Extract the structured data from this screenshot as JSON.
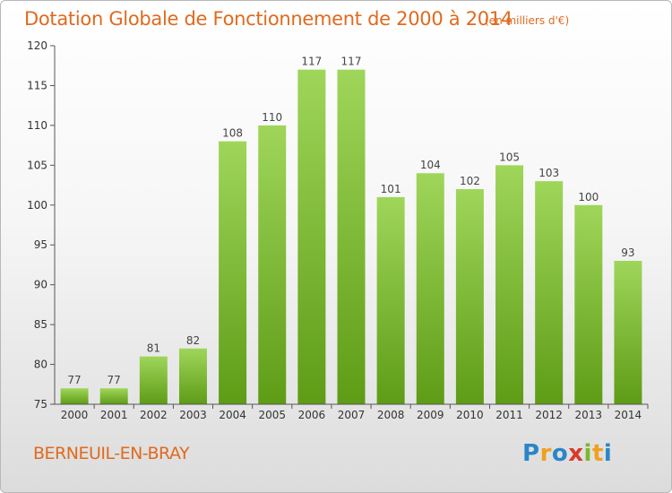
{
  "header": {
    "title": "Dotation Globale de Fonctionnement de 2000 à 2014",
    "unit": "(en milliers d'€)"
  },
  "footer": {
    "town": "BERNEUIL-EN-BRAY",
    "logo_letters": [
      "P",
      "r",
      "o",
      "x",
      "i",
      "t",
      "i"
    ]
  },
  "colors": {
    "title": "#e06a1e",
    "bar_top": "#9fd65a",
    "bar_bottom": "#5e9c16",
    "logo": [
      "#2a86c8",
      "#f0a020",
      "#2a86c8",
      "#d83a2a",
      "#7cb82a",
      "#f0a020",
      "#2a86c8"
    ]
  },
  "chart_data": {
    "type": "bar",
    "categories": [
      "2000",
      "2001",
      "2002",
      "2003",
      "2004",
      "2005",
      "2006",
      "2007",
      "2008",
      "2009",
      "2010",
      "2011",
      "2012",
      "2013",
      "2014"
    ],
    "values": [
      77,
      77,
      81,
      82,
      108,
      110,
      117,
      117,
      101,
      104,
      102,
      105,
      103,
      100,
      93
    ],
    "ylim": [
      75,
      120
    ],
    "yticks": [
      75,
      80,
      85,
      90,
      95,
      100,
      105,
      110,
      115,
      120
    ],
    "grid": false,
    "legend": "none"
  }
}
